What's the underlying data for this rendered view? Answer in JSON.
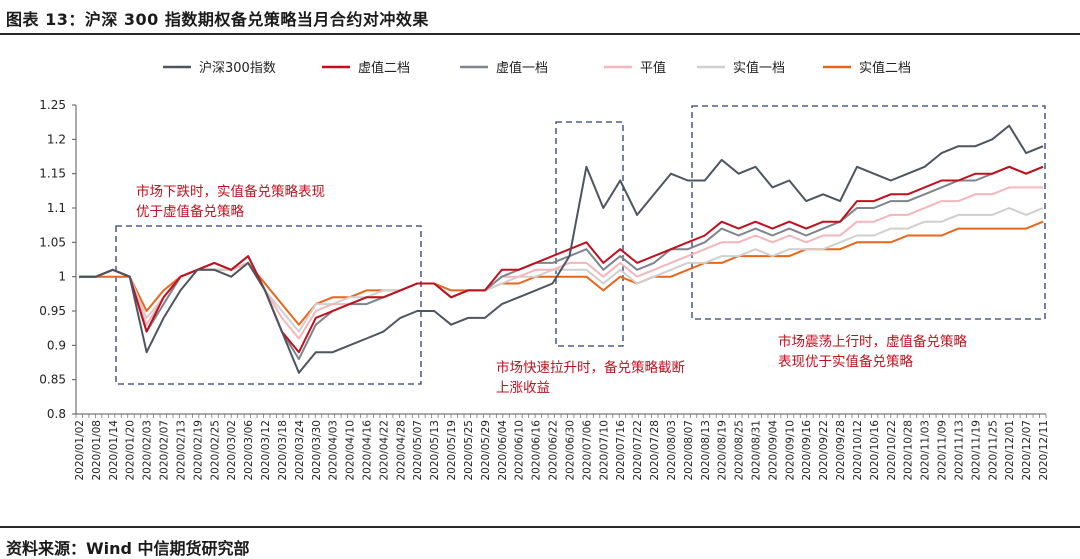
{
  "header": {
    "title": "图表 13：沪深 300 指数期权备兑策略当月合约对冲效果"
  },
  "footer": {
    "source": "资料来源：Wind 中信期货研究部"
  },
  "colors": {
    "沪深300指数": "#4d5560",
    "虚值二档": "#c0101e",
    "虚值一档": "#7d848c",
    "平值": "#f4b6ba",
    "实值一档": "#cfcfcf",
    "实值二档": "#e8651c",
    "annotation": "#c0101e",
    "box": "#2a3f6e"
  },
  "annotations": [
    {
      "lines": [
        "市场下跌时，实值备兑策略表现",
        "优于虚值备兑策略"
      ]
    },
    {
      "lines": [
        "市场快速拉升时，备兑策略截断",
        "上涨收益"
      ]
    },
    {
      "lines": [
        "市场震荡上行时，虚值备兑策略",
        "表现优于实值备兑策略"
      ]
    }
  ],
  "chart_data": {
    "type": "line",
    "title": "沪深 300 指数期权备兑策略当月合约对冲效果",
    "xlabel": "",
    "ylabel": "",
    "ylim": [
      0.8,
      1.25
    ],
    "yticks": [
      0.8,
      0.85,
      0.9,
      0.95,
      1,
      1.05,
      1.1,
      1.15,
      1.2,
      1.25
    ],
    "ytick_labels": [
      "0.8",
      "0.85",
      "0.9",
      "0.95",
      "1",
      "1.05",
      "1.1",
      "1.15",
      "1.2",
      "1.25"
    ],
    "grid": false,
    "legend": "top",
    "xtick_labels": [
      "2020/01/02",
      "2020/01/08",
      "2020/01/14",
      "2020/01/20",
      "2020/02/03",
      "2020/02/07",
      "2020/02/13",
      "2020/02/19",
      "2020/02/25",
      "2020/03/02",
      "2020/03/06",
      "2020/03/12",
      "2020/03/18",
      "2020/03/24",
      "2020/03/30",
      "2020/04/03",
      "2020/04/10",
      "2020/04/16",
      "2020/04/22",
      "2020/04/28",
      "2020/05/07",
      "2020/05/13",
      "2020/05/19",
      "2020/05/25",
      "2020/05/29",
      "2020/06/04",
      "2020/06/10",
      "2020/06/16",
      "2020/06/22",
      "2020/06/30",
      "2020/07/06",
      "2020/07/10",
      "2020/07/16",
      "2020/07/22",
      "2020/07/28",
      "2020/08/03",
      "2020/08/07",
      "2020/08/13",
      "2020/08/19",
      "2020/08/25",
      "2020/08/31",
      "2020/09/04",
      "2020/09/10",
      "2020/09/16",
      "2020/09/22",
      "2020/09/28",
      "2020/10/12",
      "2020/10/16",
      "2020/10/22",
      "2020/10/28",
      "2020/11/03",
      "2020/11/09",
      "2020/11/13",
      "2020/11/19",
      "2020/11/25",
      "2020/12/01",
      "2020/12/07",
      "2020/12/11"
    ],
    "x": [
      "2020/01/02",
      "2020/01/08",
      "2020/01/14",
      "2020/01/20",
      "2020/02/03",
      "2020/02/07",
      "2020/02/13",
      "2020/02/19",
      "2020/02/25",
      "2020/03/02",
      "2020/03/06",
      "2020/03/12",
      "2020/03/18",
      "2020/03/24",
      "2020/03/30",
      "2020/04/03",
      "2020/04/10",
      "2020/04/16",
      "2020/04/22",
      "2020/04/28",
      "2020/05/07",
      "2020/05/13",
      "2020/05/19",
      "2020/05/25",
      "2020/05/29",
      "2020/06/04",
      "2020/06/10",
      "2020/06/16",
      "2020/06/22",
      "2020/06/30",
      "2020/07/06",
      "2020/07/10",
      "2020/07/16",
      "2020/07/22",
      "2020/07/28",
      "2020/08/03",
      "2020/08/07",
      "2020/08/13",
      "2020/08/19",
      "2020/08/25",
      "2020/08/31",
      "2020/09/04",
      "2020/09/10",
      "2020/09/16",
      "2020/09/22",
      "2020/09/28",
      "2020/10/12",
      "2020/10/16",
      "2020/10/22",
      "2020/10/28",
      "2020/11/03",
      "2020/11/09",
      "2020/11/13",
      "2020/11/19",
      "2020/11/25",
      "2020/12/01",
      "2020/12/07",
      "2020/12/11"
    ],
    "series": [
      {
        "name": "沪深300指数",
        "values": [
          1.0,
          1.0,
          1.01,
          1.0,
          0.89,
          0.94,
          0.98,
          1.01,
          1.01,
          1.0,
          1.02,
          0.98,
          0.92,
          0.86,
          0.89,
          0.89,
          0.9,
          0.91,
          0.92,
          0.94,
          0.95,
          0.95,
          0.93,
          0.94,
          0.94,
          0.96,
          0.97,
          0.98,
          0.99,
          1.03,
          1.16,
          1.1,
          1.14,
          1.09,
          1.12,
          1.15,
          1.14,
          1.14,
          1.17,
          1.15,
          1.16,
          1.13,
          1.14,
          1.11,
          1.12,
          1.11,
          1.16,
          1.15,
          1.14,
          1.15,
          1.16,
          1.18,
          1.19,
          1.19,
          1.2,
          1.22,
          1.18,
          1.19
        ]
      },
      {
        "name": "虚值二档",
        "values": [
          1.0,
          1.0,
          1.01,
          1.0,
          0.92,
          0.97,
          1.0,
          1.01,
          1.02,
          1.01,
          1.03,
          0.98,
          0.92,
          0.89,
          0.94,
          0.95,
          0.96,
          0.97,
          0.97,
          0.98,
          0.99,
          0.99,
          0.97,
          0.98,
          0.98,
          1.01,
          1.01,
          1.02,
          1.03,
          1.04,
          1.05,
          1.02,
          1.04,
          1.02,
          1.03,
          1.04,
          1.05,
          1.06,
          1.08,
          1.07,
          1.08,
          1.07,
          1.08,
          1.07,
          1.08,
          1.08,
          1.11,
          1.11,
          1.12,
          1.12,
          1.13,
          1.14,
          1.14,
          1.15,
          1.15,
          1.16,
          1.15,
          1.16
        ]
      },
      {
        "name": "虚值一档",
        "values": [
          1.0,
          1.0,
          1.01,
          1.0,
          0.92,
          0.96,
          1.0,
          1.01,
          1.02,
          1.01,
          1.03,
          0.98,
          0.92,
          0.88,
          0.93,
          0.95,
          0.96,
          0.96,
          0.97,
          0.98,
          0.99,
          0.99,
          0.97,
          0.98,
          0.98,
          1.0,
          1.01,
          1.02,
          1.02,
          1.03,
          1.04,
          1.01,
          1.03,
          1.01,
          1.02,
          1.04,
          1.04,
          1.05,
          1.07,
          1.06,
          1.07,
          1.06,
          1.07,
          1.06,
          1.07,
          1.08,
          1.1,
          1.1,
          1.11,
          1.11,
          1.12,
          1.13,
          1.14,
          1.14,
          1.15,
          1.16,
          1.15,
          1.16
        ]
      },
      {
        "name": "平值",
        "values": [
          1.0,
          1.0,
          1.01,
          1.0,
          0.93,
          0.97,
          1.0,
          1.01,
          1.02,
          1.01,
          1.02,
          0.98,
          0.94,
          0.91,
          0.95,
          0.96,
          0.96,
          0.97,
          0.97,
          0.98,
          0.99,
          0.99,
          0.97,
          0.98,
          0.98,
          1.0,
          1.0,
          1.01,
          1.01,
          1.02,
          1.02,
          1.0,
          1.02,
          1.0,
          1.01,
          1.02,
          1.03,
          1.04,
          1.05,
          1.05,
          1.06,
          1.05,
          1.06,
          1.05,
          1.06,
          1.06,
          1.08,
          1.08,
          1.09,
          1.09,
          1.1,
          1.11,
          1.11,
          1.12,
          1.12,
          1.13,
          1.13,
          1.13
        ]
      },
      {
        "name": "实值一档",
        "values": [
          1.0,
          1.0,
          1.01,
          1.0,
          0.94,
          0.97,
          1.0,
          1.01,
          1.01,
          1.01,
          1.02,
          0.98,
          0.95,
          0.92,
          0.96,
          0.96,
          0.97,
          0.97,
          0.98,
          0.98,
          0.99,
          0.99,
          0.97,
          0.98,
          0.98,
          0.99,
          1.0,
          1.0,
          1.01,
          1.01,
          1.01,
          0.99,
          1.01,
          0.99,
          1.0,
          1.01,
          1.02,
          1.02,
          1.03,
          1.03,
          1.04,
          1.03,
          1.04,
          1.04,
          1.04,
          1.05,
          1.06,
          1.06,
          1.07,
          1.07,
          1.08,
          1.08,
          1.09,
          1.09,
          1.09,
          1.1,
          1.09,
          1.1
        ]
      },
      {
        "name": "实值二档",
        "values": [
          1.0,
          1.0,
          1.0,
          1.0,
          0.95,
          0.98,
          1.0,
          1.01,
          1.01,
          1.01,
          1.02,
          0.99,
          0.96,
          0.93,
          0.96,
          0.97,
          0.97,
          0.98,
          0.98,
          0.98,
          0.99,
          0.99,
          0.98,
          0.98,
          0.98,
          0.99,
          0.99,
          1.0,
          1.0,
          1.0,
          1.0,
          0.98,
          1.0,
          0.99,
          1.0,
          1.0,
          1.01,
          1.02,
          1.02,
          1.03,
          1.03,
          1.03,
          1.03,
          1.04,
          1.04,
          1.04,
          1.05,
          1.05,
          1.05,
          1.06,
          1.06,
          1.06,
          1.07,
          1.07,
          1.07,
          1.07,
          1.07,
          1.08
        ]
      }
    ]
  }
}
